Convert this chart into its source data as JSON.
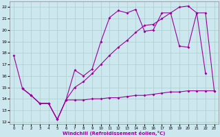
{
  "xlabel": "Windchill (Refroidissement éolien,°C)",
  "bg_color": "#cce8ee",
  "grid_color": "#aacccc",
  "line_color": "#990099",
  "x_ticks": [
    0,
    1,
    2,
    3,
    4,
    5,
    6,
    7,
    8,
    9,
    10,
    11,
    12,
    13,
    14,
    15,
    16,
    17,
    18,
    19,
    20,
    21,
    22,
    23
  ],
  "y_ticks": [
    12,
    13,
    14,
    15,
    16,
    17,
    18,
    19,
    20,
    21,
    22
  ],
  "ylim": [
    11.8,
    22.5
  ],
  "xlim": [
    -0.5,
    23.5
  ],
  "line_top_x": [
    0,
    1,
    2,
    3,
    4,
    5,
    6,
    7,
    8,
    9,
    10,
    11,
    12,
    13,
    14,
    15,
    16,
    17,
    18,
    19,
    20,
    21,
    22
  ],
  "line_top_y": [
    17.8,
    14.9,
    14.3,
    13.6,
    13.6,
    12.2,
    13.9,
    16.5,
    16.0,
    16.6,
    19.0,
    21.1,
    21.7,
    21.5,
    21.8,
    19.9,
    20.0,
    21.5,
    21.5,
    18.6,
    18.5,
    21.5,
    16.2
  ],
  "line_mid_x": [
    1,
    2,
    3,
    4,
    5,
    6,
    7,
    8,
    9,
    10,
    11,
    12,
    13,
    14,
    15,
    16,
    17,
    18,
    19,
    20,
    21,
    22,
    23
  ],
  "line_mid_y": [
    14.9,
    14.3,
    13.6,
    13.6,
    12.2,
    13.9,
    15.0,
    15.5,
    16.2,
    17.0,
    17.8,
    18.5,
    19.1,
    19.8,
    20.4,
    20.5,
    21.0,
    21.5,
    22.0,
    22.1,
    21.5,
    21.5,
    14.7
  ],
  "line_bot_x": [
    1,
    2,
    3,
    4,
    5,
    6,
    7,
    8,
    9,
    10,
    11,
    12,
    13,
    14,
    15,
    16,
    17,
    18,
    19,
    20,
    21,
    22,
    23
  ],
  "line_bot_y": [
    14.9,
    14.3,
    13.6,
    13.6,
    12.2,
    13.9,
    13.9,
    13.9,
    14.0,
    14.0,
    14.1,
    14.1,
    14.2,
    14.3,
    14.3,
    14.4,
    14.5,
    14.6,
    14.6,
    14.7,
    14.7,
    14.7,
    14.7
  ]
}
